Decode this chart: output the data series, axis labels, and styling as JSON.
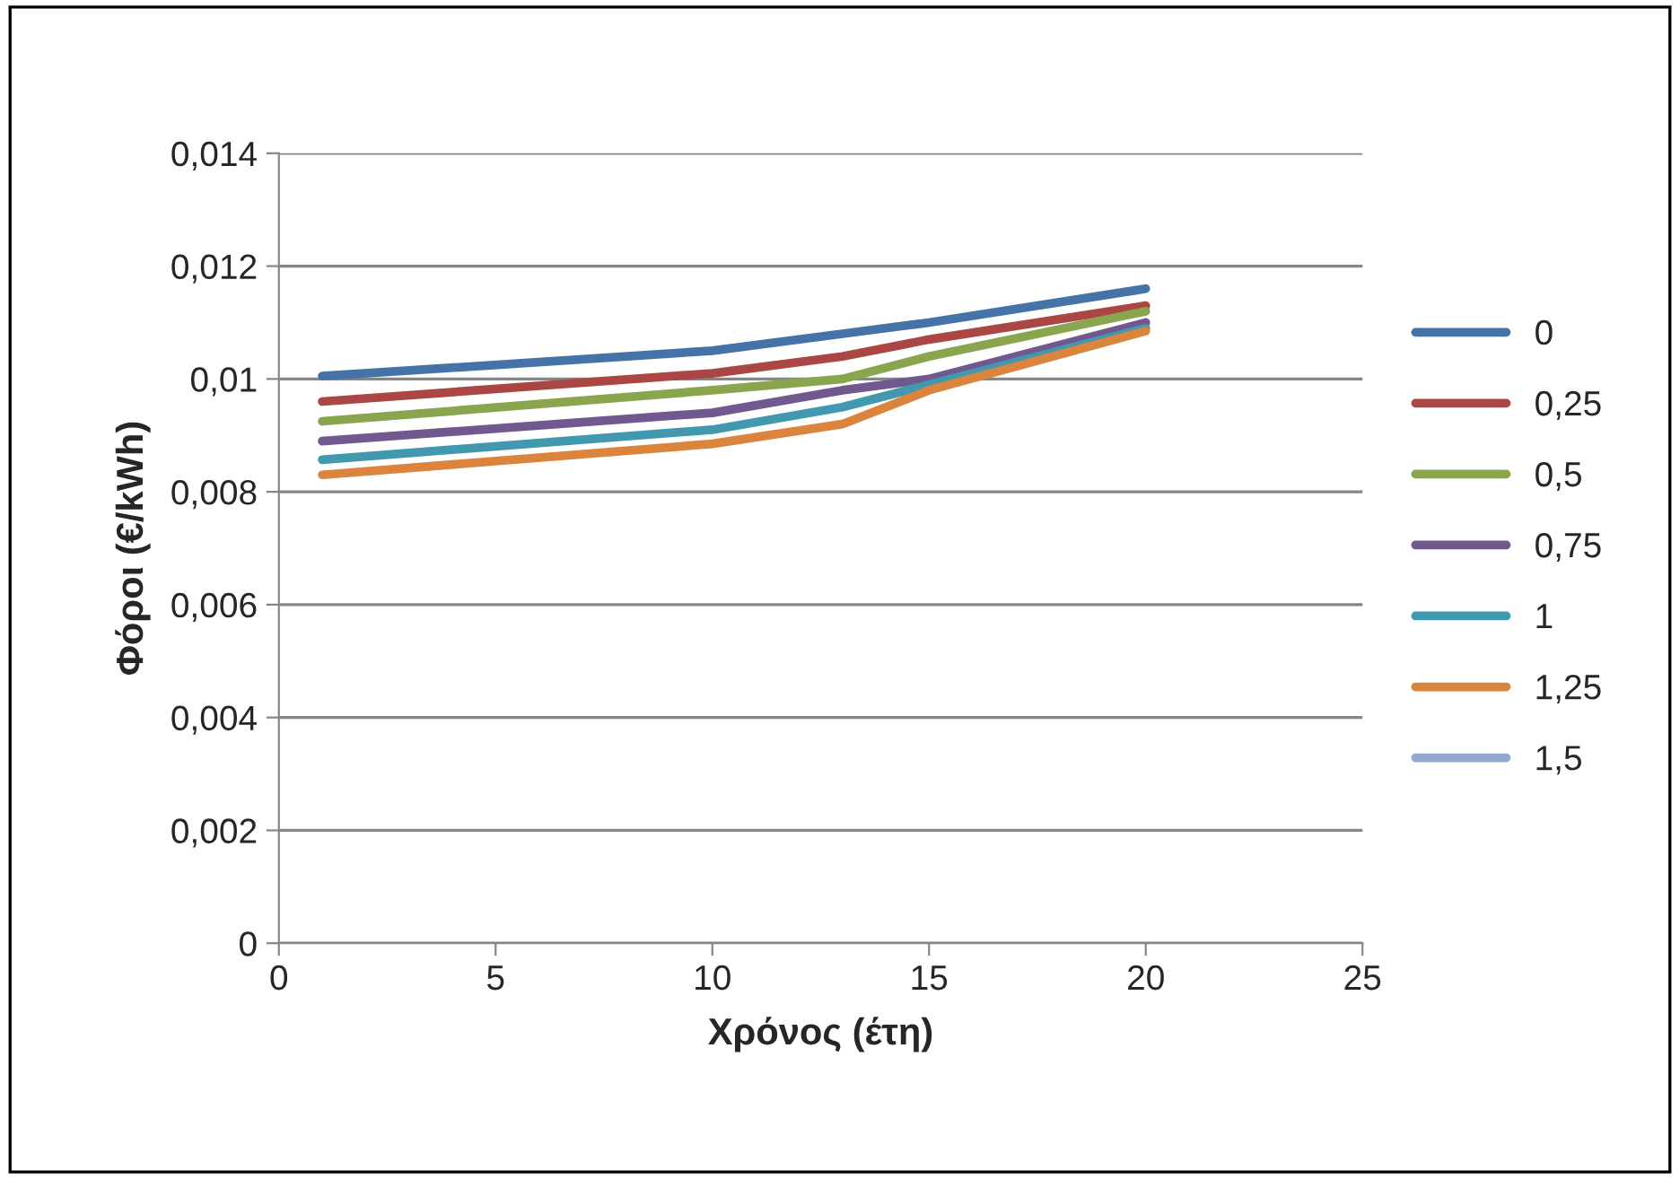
{
  "chart_data": {
    "type": "line",
    "xlabel": "Χρόνος (έτη)",
    "ylabel": "Φόροι (€/kWh)",
    "x": [
      1,
      10,
      13,
      15,
      20
    ],
    "xlim": [
      0,
      25
    ],
    "xticks": [
      0,
      5,
      10,
      15,
      20,
      25
    ],
    "ylim": [
      0,
      0.014
    ],
    "yticks": [
      {
        "value": 0,
        "label": "0"
      },
      {
        "value": 0.002,
        "label": "0,002"
      },
      {
        "value": 0.004,
        "label": "0,004"
      },
      {
        "value": 0.006,
        "label": "0,006"
      },
      {
        "value": 0.008,
        "label": "0,008"
      },
      {
        "value": 0.01,
        "label": "0,01"
      },
      {
        "value": 0.012,
        "label": "0,012"
      },
      {
        "value": 0.014,
        "label": "0,014"
      }
    ],
    "grid": "y",
    "legend": "right",
    "marker": "none",
    "line_style": "solid",
    "series": [
      {
        "name": "0",
        "color": "#4572a7",
        "values": [
          0.01005,
          0.0105,
          0.0108,
          0.011,
          0.0116
        ]
      },
      {
        "name": "0,25",
        "color": "#aa4643",
        "values": [
          0.0096,
          0.0101,
          0.0104,
          0.0107,
          0.0113
        ]
      },
      {
        "name": "0,5",
        "color": "#89a54e",
        "values": [
          0.00925,
          0.0098,
          0.01,
          0.0104,
          0.0112
        ]
      },
      {
        "name": "0,75",
        "color": "#71588f",
        "values": [
          0.0089,
          0.0094,
          0.0098,
          0.01,
          0.011
        ]
      },
      {
        "name": "1",
        "color": "#4198af",
        "values": [
          0.00857,
          0.0091,
          0.0095,
          0.0099,
          0.0109
        ]
      },
      {
        "name": "1,25",
        "color": "#db843d",
        "values": [
          0.0083,
          0.00885,
          0.0092,
          0.0098,
          0.01085
        ]
      },
      {
        "name": "1,5",
        "color": "#93a9cf",
        "values": [
          null,
          null,
          null,
          null,
          null
        ]
      }
    ]
  }
}
